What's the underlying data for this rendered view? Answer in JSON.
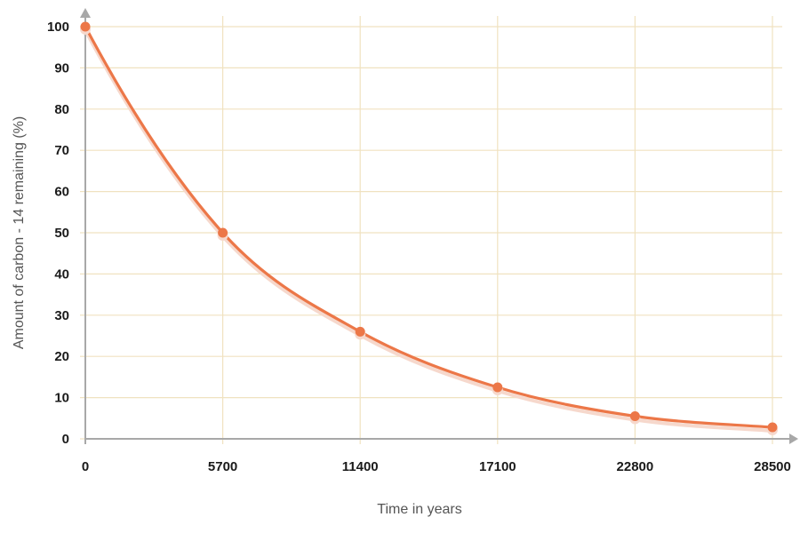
{
  "chart_data": {
    "type": "line",
    "title": "",
    "xlabel": "Time in years",
    "ylabel": "Amount of carbon - 14 remaining   (%)",
    "x_ticks": [
      "0",
      "5700",
      "11400",
      "17100",
      "22800",
      "28500"
    ],
    "y_ticks": [
      "0",
      "10",
      "20",
      "30",
      "40",
      "50",
      "60",
      "70",
      "80",
      "90",
      "100"
    ],
    "xlim": [
      0,
      28500
    ],
    "ylim": [
      0,
      100
    ],
    "grid": true,
    "series": [
      {
        "x": [
          0,
          5700,
          11400,
          17100,
          22800,
          28500
        ],
        "y": [
          100,
          50,
          26,
          12.5,
          5.5,
          2.8
        ],
        "curve": "smooth",
        "markers": true
      }
    ]
  },
  "colors": {
    "line": "#ec7748",
    "marker": "#ec7748",
    "grid": "#f0e2c0",
    "axis": "#a8a8a8",
    "shadow": "#f6d8cc"
  }
}
